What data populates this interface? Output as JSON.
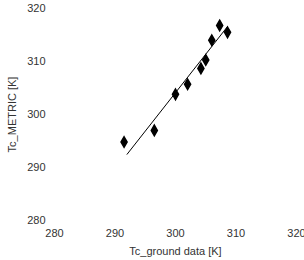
{
  "chart_data": {
    "type": "scatter",
    "x_label": "Tc_ground data [K]",
    "y_label": "Tc_METRIC [K]",
    "x": [
      291.5,
      296.5,
      300,
      302,
      304.2,
      305,
      306,
      307.3,
      308.6
    ],
    "values": [
      294.8,
      297,
      303.8,
      305.7,
      308.7,
      310.3,
      314,
      316.8,
      315.5
    ],
    "color": "#000000",
    "marker": "diamond",
    "trend_line": {
      "x": [
        292,
        308.6
      ],
      "values": [
        292.5,
        316.6
      ],
      "color": "#000000",
      "line_style": "solid"
    },
    "xlim": [
      280,
      320
    ],
    "xticks": [
      280,
      290,
      300,
      310,
      320
    ],
    "ylim": [
      280,
      320
    ],
    "yticks": [
      280,
      290,
      300,
      310,
      320
    ],
    "grid": false
  }
}
